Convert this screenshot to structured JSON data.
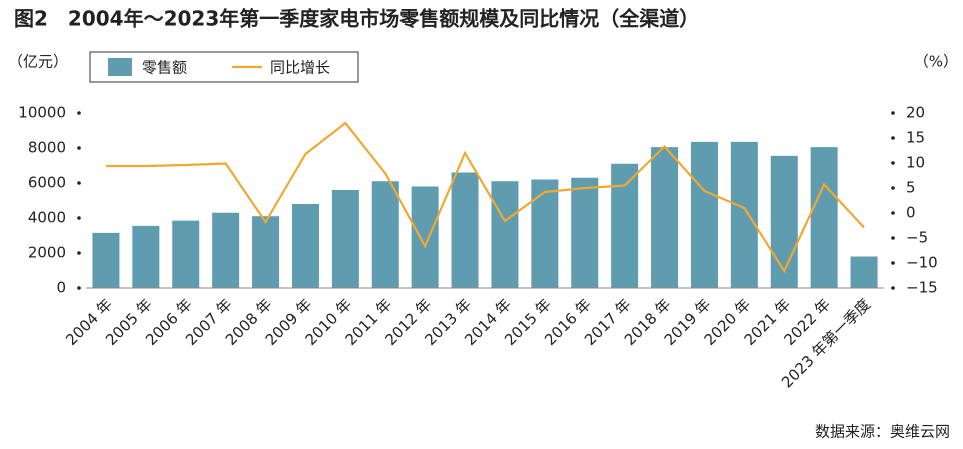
{
  "chart_data": {
    "type": "bar_line",
    "title": "图2　2004年～2023年第一季度家电市场零售额规模及同比情况（全渠道）",
    "y_label": "（亿元）",
    "y2_label": "（%）",
    "source": "数据来源：奥维云网",
    "categories": [
      "2004 年",
      "2005 年",
      "2006 年",
      "2007 年",
      "2008 年",
      "2009 年",
      "2010 年",
      "2011 年",
      "2012 年",
      "2013 年",
      "2014 年",
      "2015 年",
      "2016 年",
      "2017 年",
      "2018 年",
      "2019 年",
      "2020 年",
      "2021 年",
      "2022 年",
      "2023 年第一季度"
    ],
    "series": [
      {
        "name": "零售额",
        "type": "bar",
        "color": "#5f9cb0",
        "values": [
          3150,
          3550,
          3850,
          4300,
          4100,
          4800,
          5600,
          6100,
          5800,
          6600,
          6100,
          6200,
          6300,
          7100,
          8050,
          8350,
          8350,
          7550,
          8050,
          1800
        ]
      },
      {
        "name": "同比增长",
        "type": "line",
        "axis": "y2",
        "color": "#f0a830",
        "values": [
          9.4,
          9.4,
          9.6,
          9.9,
          -1.8,
          11.8,
          18,
          7.9,
          -6.6,
          12,
          -1.6,
          4.2,
          5.0,
          5.5,
          13.3,
          4.4,
          1,
          -11.6,
          5.7,
          -2.9
        ]
      }
    ],
    "ylim": [
      0,
      10000
    ],
    "yticks": [
      0,
      2000,
      4000,
      6000,
      8000,
      10000
    ],
    "y2lim": [
      -15,
      20
    ],
    "y2ticks": [
      20,
      15,
      10,
      5,
      0,
      {
        "value": -5,
        "label": "−5"
      },
      {
        "value": -10,
        "label": "−10"
      },
      {
        "value": -15,
        "label": "−15"
      }
    ],
    "legend": "top-left"
  }
}
